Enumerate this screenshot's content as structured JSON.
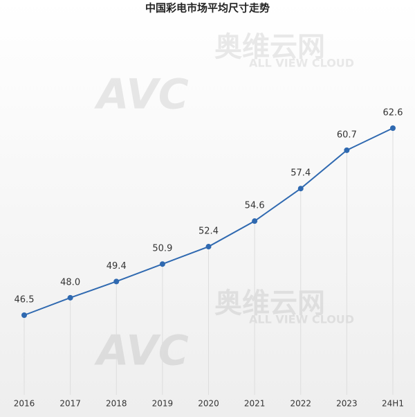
{
  "chart_data": {
    "type": "line",
    "title": "中国彩电市场平均尺寸走势",
    "categories": [
      "2016",
      "2017",
      "2018",
      "2019",
      "2020",
      "2021",
      "2022",
      "2023",
      "24H1"
    ],
    "series": [
      {
        "color": "#2f69b0",
        "values": [
          46.5,
          48.0,
          49.4,
          50.9,
          52.4,
          54.6,
          57.4,
          60.7,
          62.6
        ],
        "value_labels": [
          "46.5",
          "48.0",
          "49.4",
          "50.9",
          "52.4",
          "54.6",
          "57.4",
          "60.7",
          "62.6"
        ]
      }
    ],
    "watermark": {
      "logo": "AVC",
      "name": "奥维云网",
      "english": "ALL VIEW CLOUD"
    }
  }
}
